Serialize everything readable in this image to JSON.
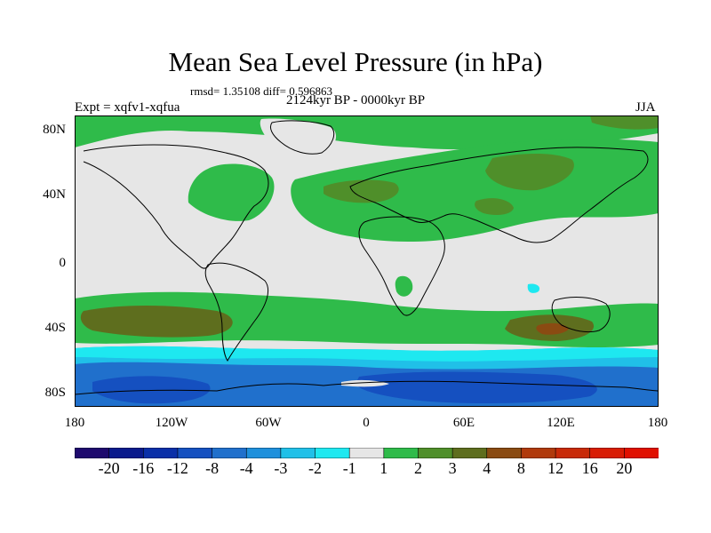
{
  "title": "Mean Sea Level Pressure (in hPa)",
  "stats": "rmsd= 1.35108 diff= 0.596863",
  "period": "2124kyr BP - 0000kyr BP",
  "experiment": "Expt = xqfv1-xqfua",
  "season": "JJA",
  "lat_labels": [
    "80N",
    "40N",
    "0",
    "40S",
    "80S"
  ],
  "lon_labels": [
    "180",
    "120W",
    "60W",
    "0",
    "60E",
    "120E",
    "180"
  ],
  "colorbar": {
    "labels": [
      "-20",
      "-16",
      "-12",
      "-8",
      "-4",
      "-3",
      "-2",
      "-1",
      "1",
      "2",
      "3",
      "4",
      "8",
      "12",
      "16",
      "20"
    ],
    "colors": [
      "#1e0a6e",
      "#0a1a8c",
      "#0a2fa8",
      "#1550c0",
      "#2070cc",
      "#1e90dc",
      "#20c0e8",
      "#1ee8f0",
      "#e6e6e6",
      "#2fbb4a",
      "#4f8f2a",
      "#5e6e1e",
      "#8a4b12",
      "#b03a0c",
      "#c82a08",
      "#d81c04",
      "#e01000"
    ]
  },
  "colors": {
    "neutral": "#e6e6e6",
    "green": "#2fbb4a",
    "dark_green": "#4f8f2a",
    "olive": "#5e6e1e",
    "light_cyan": "#1ee8f0",
    "cyan": "#20c0e8",
    "blue": "#2070cc",
    "dark_blue": "#1550c0",
    "coast": "#000000"
  }
}
